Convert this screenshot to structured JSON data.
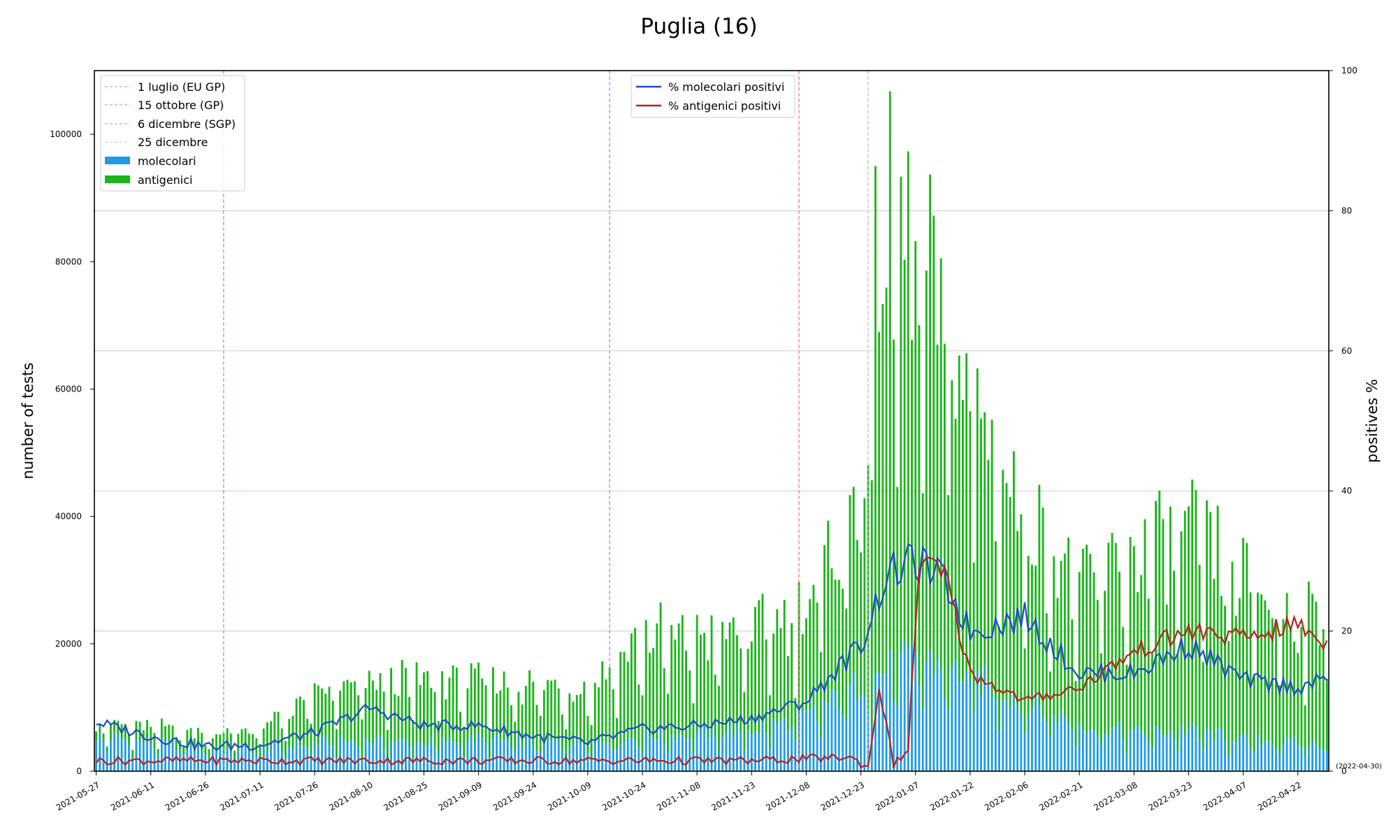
{
  "chart_data": {
    "type": "bar+line",
    "title": "Puglia (16)",
    "ylabel_left": "number of tests",
    "ylabel_right": "positives %",
    "ylim_left": [
      0,
      110000
    ],
    "ylim_right": [
      0,
      100
    ],
    "left_ticks": [
      0,
      20000,
      40000,
      60000,
      80000,
      100000
    ],
    "right_ticks": [
      0,
      20,
      40,
      60,
      80,
      100
    ],
    "right_grid": true,
    "date_start": "2021-05-27",
    "date_end": "2022-04-30",
    "end_label": "(2022-04-30)",
    "x_ticks": [
      "2021-05-27",
      "2021-06-11",
      "2021-06-26",
      "2021-07-11",
      "2021-07-26",
      "2021-08-10",
      "2021-08-25",
      "2021-09-09",
      "2021-09-24",
      "2021-10-09",
      "2021-10-24",
      "2021-11-08",
      "2021-11-23",
      "2021-12-08",
      "2021-12-23",
      "2022-01-07",
      "2022-01-22",
      "2022-02-06",
      "2022-02-21",
      "2022-03-08",
      "2022-03-23",
      "2022-04-07",
      "2022-04-22"
    ],
    "vlines": [
      {
        "date": "2021-07-01",
        "label": "1 luglio (EU GP)",
        "color": "#6fbf73"
      },
      {
        "date": "2021-10-15",
        "label": "15 ottobre (GP)",
        "color": "#c77dc7"
      },
      {
        "date": "2021-12-06",
        "label": "6 dicembre (SGP)",
        "color": "#f07b84"
      },
      {
        "date": "2021-12-25",
        "label": "25 dicembre",
        "color": "#bfbfbf"
      }
    ],
    "bar_series": [
      {
        "name": "molecolari",
        "color": "#1f9be6"
      },
      {
        "name": "antigenici",
        "color": "#1cb41c"
      }
    ],
    "line_series": [
      {
        "name": "% molecolari positivi",
        "color": "#1f47d1"
      },
      {
        "name": "% antigenici positivi",
        "color": "#b5201f"
      }
    ],
    "molecolari_anchors": [
      [
        "2021-05-27",
        5500
      ],
      [
        "2021-06-11",
        4500
      ],
      [
        "2021-06-26",
        3500
      ],
      [
        "2021-07-11",
        3500
      ],
      [
        "2021-07-26",
        4500
      ],
      [
        "2021-08-10",
        4800
      ],
      [
        "2021-08-25",
        4500
      ],
      [
        "2021-09-09",
        5000
      ],
      [
        "2021-09-24",
        4500
      ],
      [
        "2021-10-09",
        4500
      ],
      [
        "2021-10-24",
        5500
      ],
      [
        "2021-11-08",
        6000
      ],
      [
        "2021-11-23",
        6500
      ],
      [
        "2021-12-08",
        8500
      ],
      [
        "2021-12-23",
        14000
      ],
      [
        "2022-01-07",
        18000
      ],
      [
        "2022-01-22",
        15000
      ],
      [
        "2022-02-06",
        11000
      ],
      [
        "2022-02-21",
        7500
      ],
      [
        "2022-03-08",
        6000
      ],
      [
        "2022-03-23",
        6500
      ],
      [
        "2022-04-07",
        5000
      ],
      [
        "2022-04-22",
        4500
      ],
      [
        "2022-04-30",
        4000
      ]
    ],
    "antigenici_anchors": [
      [
        "2021-05-27",
        2000
      ],
      [
        "2021-06-11",
        2500
      ],
      [
        "2021-06-26",
        2500
      ],
      [
        "2021-07-11",
        3000
      ],
      [
        "2021-07-26",
        7500
      ],
      [
        "2021-08-10",
        9000
      ],
      [
        "2021-08-25",
        10000
      ],
      [
        "2021-09-09",
        9000
      ],
      [
        "2021-09-24",
        9000
      ],
      [
        "2021-10-09",
        9000
      ],
      [
        "2021-10-24",
        16000
      ],
      [
        "2021-11-08",
        15000
      ],
      [
        "2021-11-23",
        16000
      ],
      [
        "2021-12-08",
        17000
      ],
      [
        "2021-12-23",
        30000
      ],
      [
        "2021-12-28",
        70000
      ],
      [
        "2022-01-07",
        62000
      ],
      [
        "2022-01-15",
        55000
      ],
      [
        "2022-01-22",
        45000
      ],
      [
        "2022-02-06",
        30000
      ],
      [
        "2022-02-21",
        22000
      ],
      [
        "2022-03-08",
        28000
      ],
      [
        "2022-03-23",
        30000
      ],
      [
        "2022-04-07",
        25000
      ],
      [
        "2022-04-22",
        20000
      ],
      [
        "2022-04-30",
        20000
      ]
    ],
    "perc_mol_anchors": [
      [
        "2021-05-27",
        7
      ],
      [
        "2021-06-11",
        5
      ],
      [
        "2021-06-26",
        3.5
      ],
      [
        "2021-07-11",
        3.8
      ],
      [
        "2021-07-26",
        5.5
      ],
      [
        "2021-08-10",
        9
      ],
      [
        "2021-08-25",
        6.5
      ],
      [
        "2021-09-09",
        6.5
      ],
      [
        "2021-09-24",
        5
      ],
      [
        "2021-10-09",
        4
      ],
      [
        "2021-10-24",
        6
      ],
      [
        "2021-11-08",
        6.5
      ],
      [
        "2021-11-23",
        7.5
      ],
      [
        "2021-12-08",
        10
      ],
      [
        "2021-12-23",
        18
      ],
      [
        "2021-12-30",
        28
      ],
      [
        "2022-01-07",
        30
      ],
      [
        "2022-01-15",
        27
      ],
      [
        "2022-01-22",
        20
      ],
      [
        "2022-02-06",
        22
      ],
      [
        "2022-02-21",
        14
      ],
      [
        "2022-03-08",
        14
      ],
      [
        "2022-03-23",
        18
      ],
      [
        "2022-04-07",
        13
      ],
      [
        "2022-04-22",
        12
      ],
      [
        "2022-04-30",
        13
      ]
    ],
    "perc_ant_anchors": [
      [
        "2021-05-27",
        1.5
      ],
      [
        "2021-06-26",
        1.5
      ],
      [
        "2021-07-26",
        1.5
      ],
      [
        "2021-08-25",
        1.5
      ],
      [
        "2021-09-24",
        1.5
      ],
      [
        "2021-10-24",
        1.5
      ],
      [
        "2021-11-23",
        1.5
      ],
      [
        "2021-12-20",
        2
      ],
      [
        "2021-12-25",
        0.5
      ],
      [
        "2021-12-28",
        12
      ],
      [
        "2022-01-01",
        1
      ],
      [
        "2022-01-05",
        3
      ],
      [
        "2022-01-08",
        30
      ],
      [
        "2022-01-15",
        28
      ],
      [
        "2022-01-22",
        14
      ],
      [
        "2022-02-06",
        10
      ],
      [
        "2022-02-21",
        12
      ],
      [
        "2022-03-08",
        17
      ],
      [
        "2022-03-23",
        20
      ],
      [
        "2022-04-07",
        19
      ],
      [
        "2022-04-22",
        21
      ],
      [
        "2022-04-30",
        18
      ]
    ]
  }
}
